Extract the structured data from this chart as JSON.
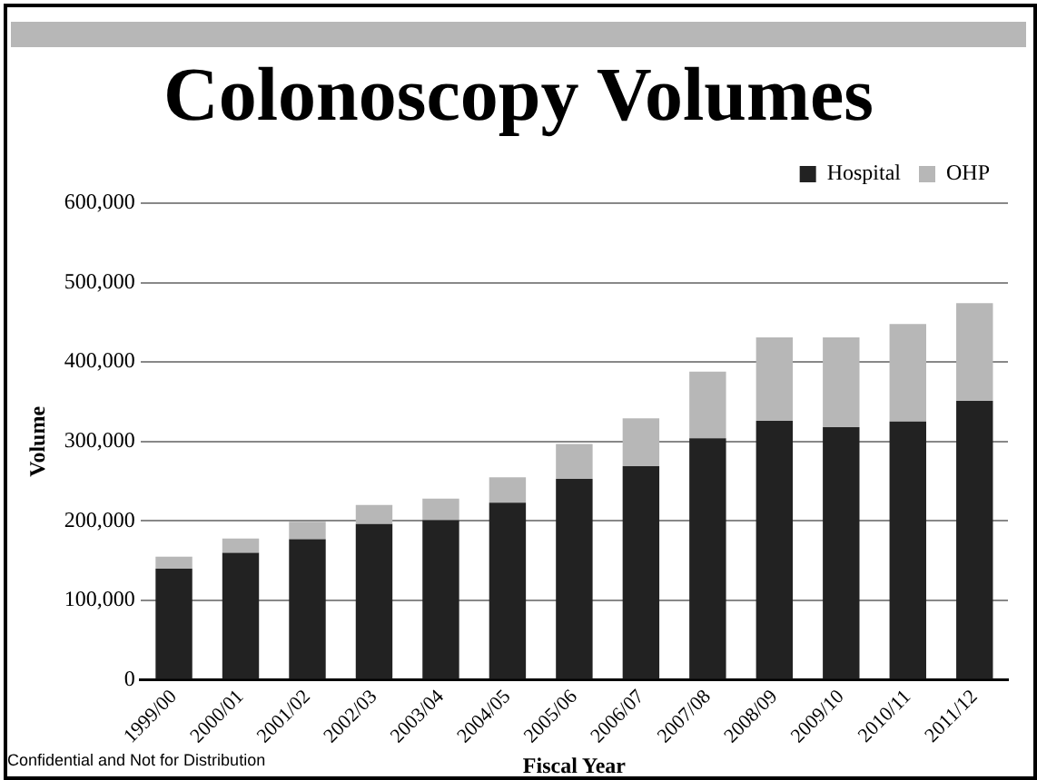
{
  "chart_data": {
    "type": "bar",
    "title": "Colonoscopy Volumes",
    "xlabel": "Fiscal Year",
    "ylabel": "Volume",
    "categories": [
      "1999/00",
      "2000/01",
      "2001/02",
      "2002/03",
      "2003/04",
      "2004/05",
      "2005/06",
      "2006/07",
      "2007/08",
      "2008/09",
      "2009/10",
      "2010/11",
      "2011/12"
    ],
    "series": [
      {
        "name": "Hospital",
        "color": "#222222",
        "values": [
          140000,
          160000,
          177000,
          196000,
          201000,
          223000,
          253000,
          269000,
          304000,
          326000,
          318000,
          325000,
          351000
        ]
      },
      {
        "name": "OHP",
        "color": "#b7b7b7",
        "values": [
          15000,
          18000,
          22000,
          24000,
          27000,
          32000,
          44000,
          60000,
          84000,
          105000,
          113000,
          123000,
          123000
        ]
      }
    ],
    "stacked": true,
    "ylim": [
      0,
      600000
    ],
    "yticks": [
      {
        "value": 0,
        "label": "0"
      },
      {
        "value": 100000,
        "label": "100,000"
      },
      {
        "value": 200000,
        "label": "200,000"
      },
      {
        "value": 300000,
        "label": "300,000"
      },
      {
        "value": 400000,
        "label": "400,000"
      },
      {
        "value": 500000,
        "label": "500,000"
      },
      {
        "value": 600000,
        "label": "600,000"
      }
    ],
    "grid": "y",
    "legend": "top right",
    "annotations": [
      "Confidential and Not for Distribution"
    ]
  }
}
